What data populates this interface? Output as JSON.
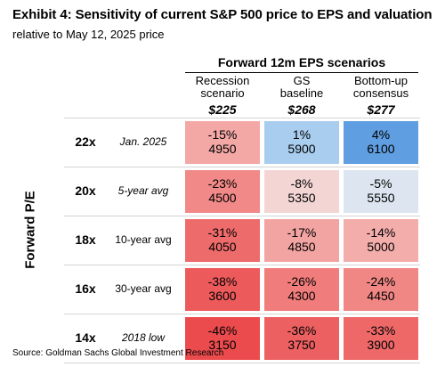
{
  "header": {
    "title": "Exhibit 4: Sensitivity of current S&P 500 price to EPS and valuation",
    "subtitle": "relative to May 12, 2025 price",
    "group_header": "Forward 12m EPS scenarios",
    "y_axis_label": "Forward P/E"
  },
  "source": "Source: Goldman Sachs Global Investment Research",
  "colors": {
    "strong_red": "#ee4d4f",
    "red": "#ef6c6c",
    "light_red": "#f2a4a2",
    "pale_red": "#f3d6d4",
    "pale_blue": "#dde6f0",
    "light_blue": "#a9cdef",
    "blue": "#5f9ee0"
  },
  "chart_data": {
    "type": "heatmap",
    "columns": [
      {
        "name_line1": "Recession",
        "name_line2": "scenario",
        "eps": "$225"
      },
      {
        "name_line1": "GS",
        "name_line2": "baseline",
        "eps": "$268"
      },
      {
        "name_line1": "Bottom-up",
        "name_line2": "consensus",
        "eps": "$277"
      }
    ],
    "rows": [
      {
        "pe": "22x",
        "label": "Jan. 2025",
        "italic": true,
        "cells": [
          {
            "pct": "-15%",
            "price": "4950",
            "color": "#f3a8a6"
          },
          {
            "pct": "1%",
            "price": "5900",
            "color": "#a9cdef"
          },
          {
            "pct": "4%",
            "price": "6100",
            "color": "#5f9ee0"
          }
        ]
      },
      {
        "pe": "20x",
        "label": "5-year avg",
        "italic": true,
        "cells": [
          {
            "pct": "-23%",
            "price": "4500",
            "color": "#f08987"
          },
          {
            "pct": "-8%",
            "price": "5350",
            "color": "#f3d6d4"
          },
          {
            "pct": "-5%",
            "price": "5550",
            "color": "#dde6f0"
          }
        ]
      },
      {
        "pe": "18x",
        "label": "10-year avg",
        "italic": false,
        "cells": [
          {
            "pct": "-31%",
            "price": "4050",
            "color": "#ee6b6b"
          },
          {
            "pct": "-17%",
            "price": "4850",
            "color": "#f2a4a2"
          },
          {
            "pct": "-14%",
            "price": "5000",
            "color": "#f3aeac"
          }
        ]
      },
      {
        "pe": "16x",
        "label": "30-year avg",
        "italic": false,
        "cells": [
          {
            "pct": "-38%",
            "price": "3600",
            "color": "#ed5a5b"
          },
          {
            "pct": "-26%",
            "price": "4300",
            "color": "#f07c7b"
          },
          {
            "pct": "-24%",
            "price": "4450",
            "color": "#f08785"
          }
        ]
      },
      {
        "pe": "14x",
        "label": "2018 low",
        "italic": true,
        "cells": [
          {
            "pct": "-46%",
            "price": "3150",
            "color": "#ec4b4d"
          },
          {
            "pct": "-36%",
            "price": "3750",
            "color": "#ed6062"
          },
          {
            "pct": "-33%",
            "price": "3900",
            "color": "#ee6868"
          }
        ]
      }
    ]
  }
}
